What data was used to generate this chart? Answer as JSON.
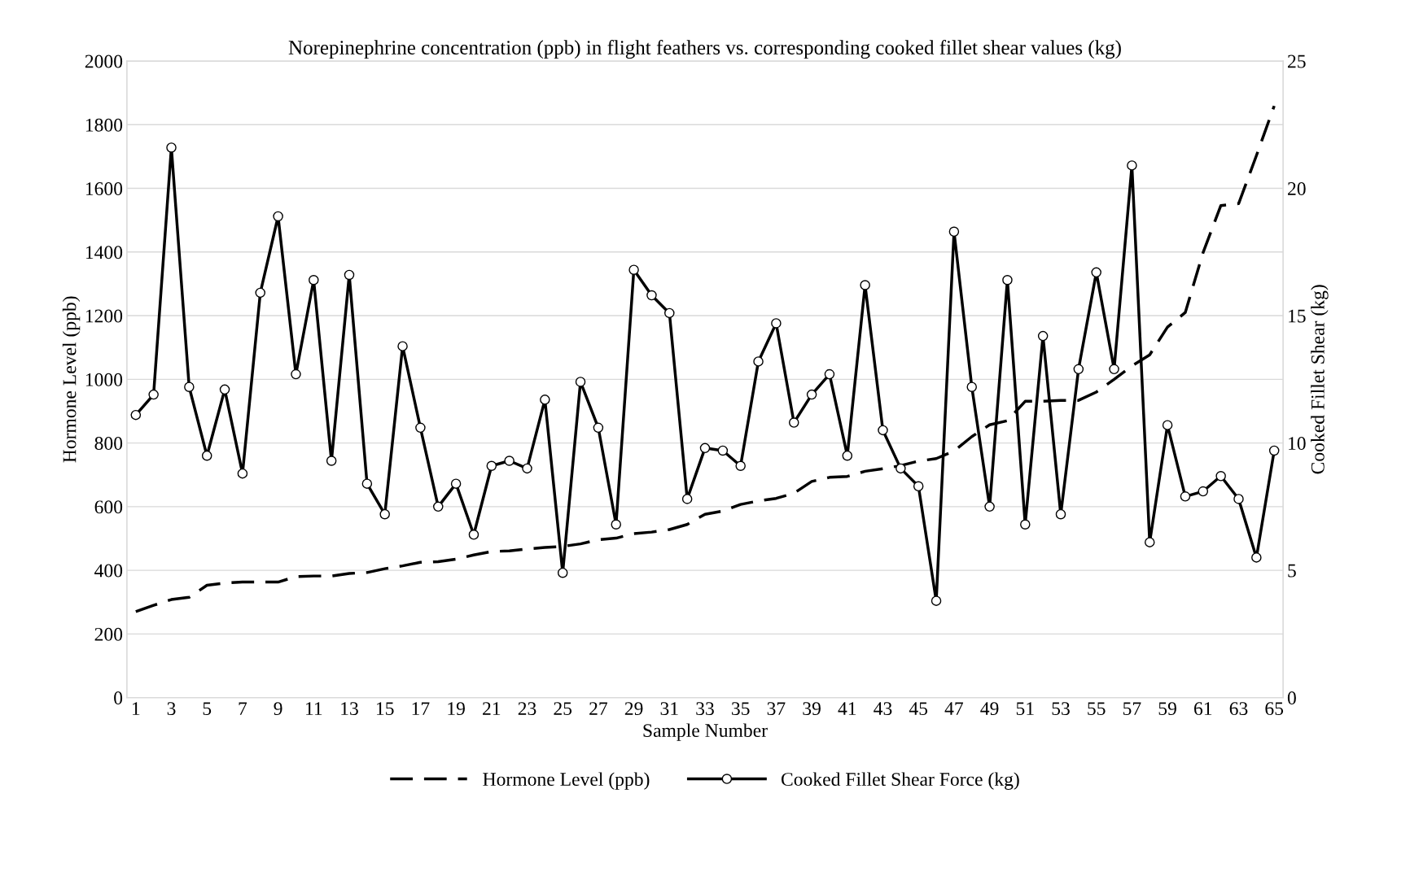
{
  "chart_data": {
    "type": "line",
    "title": "Norepinephrine concentration (ppb) in flight feathers vs. corresponding cooked fillet shear values (kg)",
    "xlabel": "Sample Number",
    "ylabel": "Hormone Level (ppb)",
    "y2label": "Cooked Fillet Shear (kg)",
    "categories": [
      "1",
      null,
      "3",
      null,
      "5",
      null,
      "7",
      null,
      "9",
      null,
      "11",
      null,
      "13",
      null,
      "15",
      null,
      "17",
      null,
      "19",
      null,
      "21",
      null,
      "23",
      null,
      "25",
      null,
      "27",
      null,
      "29",
      null,
      "31",
      null,
      "33",
      null,
      "35",
      null,
      "37",
      null,
      "39",
      null,
      "41",
      null,
      "43",
      null,
      "45",
      null,
      "47",
      null,
      "49",
      null,
      "51",
      null,
      "53",
      null,
      "55",
      null,
      "57",
      null,
      "59",
      null,
      "61",
      null,
      "63",
      null,
      "65"
    ],
    "ylim": [
      0,
      2000
    ],
    "yticks": [
      0,
      200,
      400,
      600,
      800,
      1000,
      1200,
      1400,
      1600,
      1800,
      2000
    ],
    "y2lim": [
      0,
      25
    ],
    "y2ticks": [
      0,
      5,
      10,
      15,
      20,
      25
    ],
    "grid": "y",
    "legend": "bottom",
    "series": [
      {
        "name": "Hormone Level (ppb)",
        "color": "#000000",
        "line_style": "dashed",
        "marker": "none",
        "values": [
          270,
          290,
          308,
          315,
          353,
          360,
          363,
          363,
          363,
          380,
          382,
          382,
          390,
          393,
          405,
          414,
          425,
          427,
          435,
          448,
          459,
          461,
          467,
          472,
          475,
          483,
          496,
          501,
          515,
          520,
          528,
          544,
          576,
          586,
          607,
          618,
          626,
          642,
          679,
          692,
          695,
          711,
          719,
          729,
          743,
          751,
          775,
          820,
          857,
          870,
          931,
          931,
          934,
          934,
          960,
          1000,
          1042,
          1077,
          1164,
          1210,
          1398,
          1546,
          1552,
          1703,
          1859
        ]
      },
      {
        "name": "Cooked Fillet Shear Force (kg)",
        "color": "#000000",
        "line_style": "solid",
        "marker": "circle",
        "axis": "y2",
        "values": [
          11.1,
          11.9,
          21.6,
          12.2,
          9.5,
          12.1,
          8.8,
          15.9,
          18.9,
          12.7,
          16.4,
          9.3,
          16.6,
          8.4,
          7.2,
          13.8,
          10.6,
          7.5,
          8.4,
          6.4,
          9.1,
          9.3,
          9.0,
          11.7,
          4.9,
          12.4,
          10.6,
          6.8,
          16.8,
          15.8,
          15.1,
          7.8,
          9.8,
          9.7,
          9.1,
          13.2,
          14.7,
          10.8,
          11.9,
          12.7,
          9.5,
          16.2,
          10.5,
          9.0,
          8.3,
          3.8,
          18.3,
          12.2,
          7.5,
          16.4,
          6.8,
          14.2,
          7.2,
          12.9,
          16.7,
          12.9,
          20.9,
          6.1,
          10.7,
          7.9,
          8.1,
          8.7,
          7.8,
          5.5,
          9.7
        ]
      }
    ]
  }
}
